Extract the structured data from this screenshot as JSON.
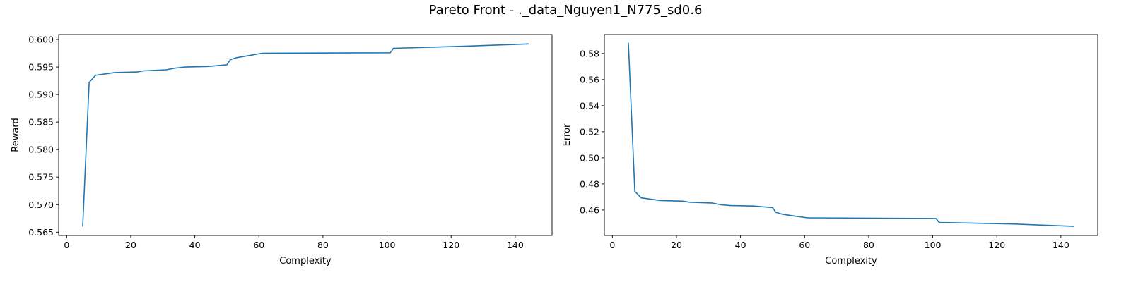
{
  "figure": {
    "title": "Pareto Front - ._data_Nguyen1_N775_sd0.6"
  },
  "chart_data": [
    {
      "type": "line",
      "title": "",
      "xlabel": "Complexity",
      "ylabel": "Reward",
      "xlim": [
        -2.5,
        151.5
      ],
      "ylim": [
        0.5644,
        0.6009
      ],
      "xticks": [
        0,
        20,
        40,
        60,
        80,
        100,
        120,
        140
      ],
      "yticks": [
        0.565,
        0.57,
        0.575,
        0.58,
        0.585,
        0.59,
        0.595,
        0.6
      ],
      "ytick_labels": [
        "0.565",
        "0.570",
        "0.575",
        "0.580",
        "0.585",
        "0.590",
        "0.595",
        "0.600"
      ],
      "grid": false,
      "series": [
        {
          "name": "Reward",
          "color": "#1f77b4",
          "x": [
            5,
            7,
            9,
            15,
            22,
            24,
            31,
            34,
            37,
            44,
            50,
            51,
            53,
            57,
            61,
            101,
            102,
            125,
            144
          ],
          "y": [
            0.5661,
            0.5922,
            0.5935,
            0.594,
            0.5941,
            0.5943,
            0.5945,
            0.5948,
            0.595,
            0.5951,
            0.5954,
            0.5963,
            0.5967,
            0.5971,
            0.5975,
            0.5976,
            0.5984,
            0.5988,
            0.5992
          ]
        }
      ]
    },
    {
      "type": "line",
      "title": "",
      "xlabel": "Complexity",
      "ylabel": "Error",
      "xlim": [
        -2.5,
        151.5
      ],
      "ylim": [
        0.4405,
        0.5945
      ],
      "xticks": [
        0,
        20,
        40,
        60,
        80,
        100,
        120,
        140
      ],
      "yticks": [
        0.46,
        0.48,
        0.5,
        0.52,
        0.54,
        0.56,
        0.58
      ],
      "ytick_labels": [
        "0.46",
        "0.48",
        "0.50",
        "0.52",
        "0.54",
        "0.56",
        "0.58"
      ],
      "grid": false,
      "series": [
        {
          "name": "Error",
          "color": "#1f77b4",
          "x": [
            5,
            7,
            9,
            15,
            22,
            24,
            31,
            34,
            37,
            44,
            50,
            51,
            53,
            57,
            61,
            101,
            102,
            125,
            144
          ],
          "y": [
            0.5878,
            0.4744,
            0.4693,
            0.4673,
            0.4668,
            0.466,
            0.4654,
            0.464,
            0.4634,
            0.4631,
            0.4619,
            0.4583,
            0.4568,
            0.4553,
            0.454,
            0.4535,
            0.4505,
            0.4493,
            0.4475
          ]
        }
      ]
    }
  ]
}
